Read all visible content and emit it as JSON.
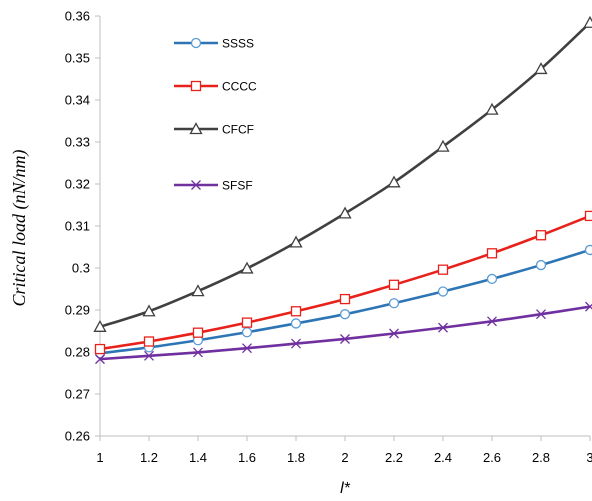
{
  "chart_data": {
    "type": "line",
    "title": "",
    "xlabel": "l*",
    "ylabel": "Critical load (nN/nm)",
    "xlim": [
      1,
      3
    ],
    "ylim": [
      0.26,
      0.36
    ],
    "x_ticks": [
      "1",
      "1.2",
      "1.4",
      "1.6",
      "1.8",
      "2",
      "2.2",
      "2.4",
      "2.6",
      "2.8",
      "3"
    ],
    "y_ticks": [
      "0.26",
      "0.27",
      "0.28",
      "0.29",
      "0.3",
      "0.31",
      "0.32",
      "0.33",
      "0.34",
      "0.35",
      "0.36"
    ],
    "grid": false,
    "legend_position": "top-left",
    "x": [
      1,
      1.2,
      1.4,
      1.6,
      1.8,
      2,
      2.2,
      2.4,
      2.6,
      2.8,
      3
    ],
    "series": [
      {
        "name": "SSSS",
        "color": "#2e75b6",
        "marker": "circle",
        "values": [
          0.2797,
          0.2811,
          0.2828,
          0.2847,
          0.2868,
          0.289,
          0.2916,
          0.2944,
          0.2974,
          0.3007,
          0.3043
        ]
      },
      {
        "name": "CCCC",
        "color": "#e8211b",
        "marker": "square",
        "values": [
          0.2807,
          0.2825,
          0.2846,
          0.287,
          0.2897,
          0.2926,
          0.296,
          0.2996,
          0.3035,
          0.3078,
          0.3124
        ]
      },
      {
        "name": "CFCF",
        "color": "#404040",
        "marker": "triangle",
        "values": [
          0.286,
          0.2897,
          0.2945,
          0.2999,
          0.3061,
          0.313,
          0.3204,
          0.3289,
          0.3377,
          0.3474,
          0.3584
        ]
      },
      {
        "name": "SFSF",
        "color": "#7030a0",
        "marker": "x",
        "values": [
          0.2783,
          0.2791,
          0.2799,
          0.2809,
          0.282,
          0.2831,
          0.2844,
          0.2858,
          0.2873,
          0.289,
          0.2908
        ]
      }
    ]
  }
}
